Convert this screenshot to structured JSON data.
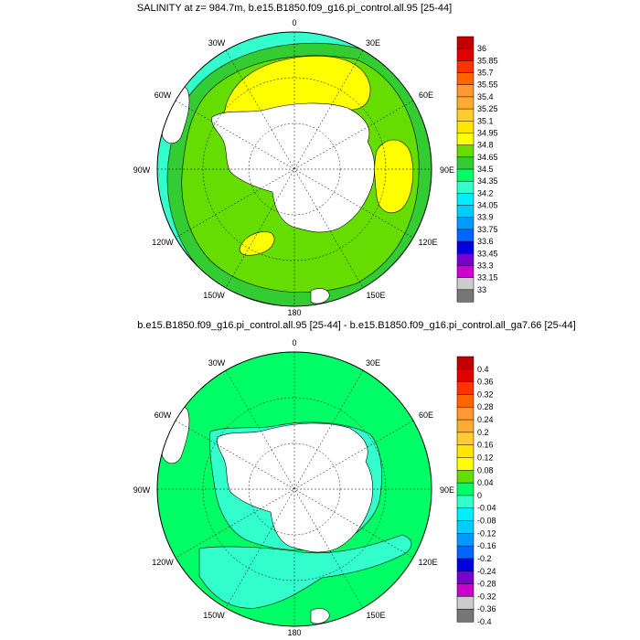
{
  "panels": [
    {
      "title": "SALINITY at z= 984.7m, b.e15.B1850.f09_g16.pi_control.all.95 [25-44]",
      "lon_labels": {
        "top": "0",
        "tl": "30W",
        "tr": "30E",
        "ul": "60W",
        "ur": "60E",
        "left": "90W",
        "right": "90E",
        "ll": "120W",
        "lr": "120E",
        "bl": "150W",
        "br": "150E",
        "bottom": "180"
      },
      "colorbar": {
        "labels": [
          "36",
          "35.85",
          "35.7",
          "35.55",
          "35.4",
          "35.25",
          "35.1",
          "34.95",
          "34.8",
          "34.65",
          "34.5",
          "34.35",
          "34.2",
          "34.05",
          "33.9",
          "33.75",
          "33.6",
          "33.45",
          "33.3",
          "33.15",
          "33"
        ],
        "colors": [
          "#c00000",
          "#e00000",
          "#ff3300",
          "#ff6600",
          "#ff9933",
          "#ffaa33",
          "#ffcc33",
          "#ffe600",
          "#ffff00",
          "#66dd00",
          "#33cc33",
          "#00ff66",
          "#33ffcc",
          "#00eeff",
          "#00ccff",
          "#0099ff",
          "#0066ff",
          "#0000dd",
          "#7700cc",
          "#cc00cc",
          "#cccccc",
          "#777777"
        ]
      }
    },
    {
      "title": "b.e15.B1850.f09_g16.pi_control.all.95 [25-44] - b.e15.B1850.f09_g16.pi_control.all_ga7.66 [25-44]",
      "lon_labels": {
        "top": "0",
        "tl": "30W",
        "tr": "30E",
        "ul": "60W",
        "ur": "60E",
        "left": "90W",
        "right": "90E",
        "ll": "120W",
        "lr": "120E",
        "bl": "150W",
        "br": "150E",
        "bottom": "180"
      },
      "colorbar": {
        "labels": [
          "0.4",
          "0.36",
          "0.32",
          "0.28",
          "0.24",
          "0.2",
          "0.16",
          "0.12",
          "0.08",
          "0.04",
          "0",
          "-0.04",
          "-0.08",
          "-0.12",
          "-0.16",
          "-0.2",
          "-0.24",
          "-0.28",
          "-0.32",
          "-0.36",
          "-0.4"
        ],
        "colors": [
          "#c00000",
          "#e00000",
          "#ff3300",
          "#ff6600",
          "#ff9933",
          "#ffaa33",
          "#ffcc33",
          "#ffe600",
          "#ffff00",
          "#66dd00",
          "#00ff66",
          "#33ffcc",
          "#00eeff",
          "#00ccff",
          "#0099ff",
          "#0066ff",
          "#0000dd",
          "#7700cc",
          "#cc00cc",
          "#cccccc",
          "#777777"
        ]
      }
    }
  ],
  "map_colors": {
    "land": "#ffffff",
    "top_green": "#66dd00",
    "top_dkgreen": "#33cc33",
    "top_cyan": "#33ffcc",
    "top_yellow": "#ffff00",
    "bot_green": "#00ff66",
    "bot_cyan": "#33ffcc"
  }
}
